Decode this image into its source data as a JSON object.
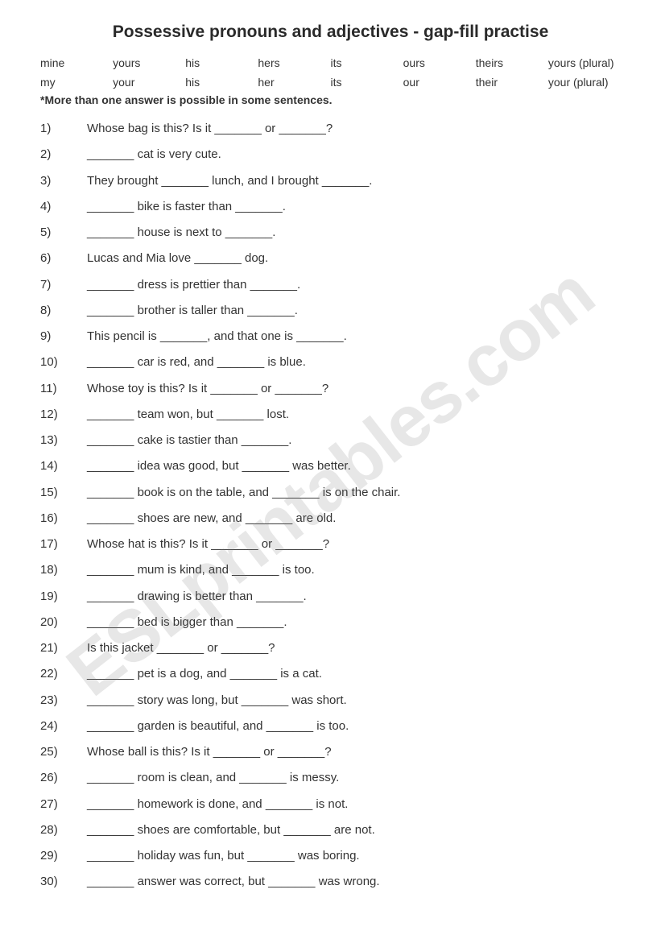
{
  "title": "Possessive pronouns and adjectives - gap-fill practise",
  "wordbank_row1": [
    "mine",
    "yours",
    "his",
    "hers",
    "its",
    "ours",
    "theirs",
    "yours (plural)"
  ],
  "wordbank_row2": [
    "my",
    "your",
    "his",
    "her",
    "its",
    "our",
    "their",
    "your (plural)"
  ],
  "note": "*More than one answer is possible in some sentences.",
  "questions": [
    "Whose bag is this? Is it _______ or _______?",
    "_______ cat is very cute.",
    "They brought _______ lunch, and I brought _______.",
    "_______ bike is faster than _______.",
    "_______ house is next to _______.",
    "Lucas and Mia love _______ dog.",
    "_______ dress is prettier than _______.",
    "_______ brother is taller than _______.",
    "This pencil is _______, and that one is _______.",
    "_______ car is red, and _______ is blue.",
    "Whose toy is this? Is it _______ or _______?",
    "_______ team won, but _______ lost.",
    "_______ cake is tastier than _______.",
    "_______ idea was good, but _______ was better.",
    "_______ book is on the table, and _______ is on the chair.",
    "_______ shoes are new, and _______ are old.",
    "Whose hat is this? Is it _______ or _______?",
    "_______ mum is kind, and _______ is too.",
    "_______ drawing is better than _______.",
    "_______ bed is bigger than _______.",
    "Is this jacket _______ or _______?",
    "_______ pet is a dog, and _______ is a cat.",
    "_______ story was long, but _______ was short.",
    "_______ garden is beautiful, and _______ is too.",
    "Whose ball is this? Is it _______ or _______?",
    "_______ room is clean, and _______ is messy.",
    "_______ homework is done, and _______ is not.",
    "_______ shoes are comfortable, but _______ are not.",
    "_______ holiday was fun, but _______ was boring.",
    "_______ answer was correct, but _______ was wrong."
  ],
  "watermark": "ESLprintables.com"
}
